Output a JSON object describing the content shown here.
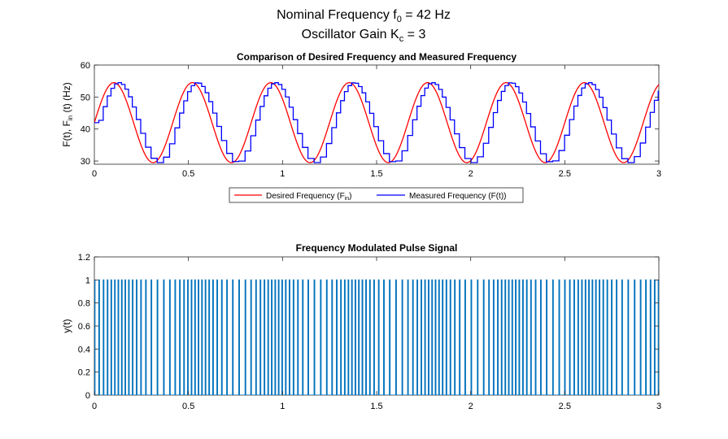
{
  "figure": {
    "title_line1_prefix": "Nominal  Frequency  f",
    "title_line1_sub": "0",
    "title_line1_suffix": "  =  42  Hz",
    "title_line2_prefix": "Oscillator  Gain  K",
    "title_line2_sub": "c",
    "title_line2_suffix": "  =  3"
  },
  "colors": {
    "desired": "#ff0000",
    "measured": "#0000ff",
    "pulse": "#0072bd",
    "axis": "#262626"
  },
  "chart_data": [
    {
      "type": "line",
      "title": "Comparison of Desired Frequency and Measured Frequency",
      "ylabel_parts": {
        "a": "F(t),  F",
        "sub": "in",
        "b": " (t)  (Hz)"
      },
      "xlabel": "",
      "xlim": [
        0,
        3
      ],
      "ylim": [
        29,
        60
      ],
      "xticks": [
        0,
        0.5,
        1,
        1.5,
        2,
        2.5,
        3
      ],
      "xtick_labels": [
        "0",
        "0.5",
        "1",
        "1.5",
        "2",
        "2.5",
        "3"
      ],
      "yticks": [
        30,
        40,
        50,
        60
      ],
      "ytick_labels": [
        "30",
        "40",
        "50",
        "60"
      ],
      "legend": {
        "placement": "below",
        "desired_label_a": "Desired  Frequency  (F",
        "desired_label_sub": "in",
        "desired_label_b": ")",
        "measured_label": "Measured Frequency (F(t))"
      },
      "series": [
        {
          "name": "Desired Frequency (Fin)",
          "color": "#ff0000",
          "formula": "42 + 12.5*sin(2*pi*2.4*t)",
          "period": 0.4167,
          "center": 42,
          "amplitude": 12.5,
          "phase_lag": 0
        },
        {
          "name": "Measured Frequency (F(t))",
          "color": "#0000ff",
          "formula": "stepwise lagged copy of desired",
          "period": 0.4167,
          "center": 42,
          "amplitude": 12.5,
          "phase_lag": 0.02
        }
      ]
    },
    {
      "type": "line",
      "title": "Frequency Modulated Pulse Signal",
      "ylabel": "y(t)",
      "xlabel": "",
      "xlim": [
        0,
        3
      ],
      "ylim": [
        0,
        1.2
      ],
      "xticks": [
        0,
        0.5,
        1,
        1.5,
        2,
        2.5,
        3
      ],
      "xtick_labels": [
        "0",
        "0.5",
        "1",
        "1.5",
        "2",
        "2.5",
        "3"
      ],
      "yticks": [
        0,
        0.2,
        0.4,
        0.6,
        0.8,
        1,
        1.2
      ],
      "ytick_labels": [
        "0",
        "0.2",
        "0.4",
        "0.6",
        "0.8",
        "1",
        "1.2"
      ],
      "series": [
        {
          "name": "y(t)",
          "color": "#0072bd",
          "pulse_height": 1,
          "nominal_frequency_hz": 42
        }
      ]
    }
  ]
}
